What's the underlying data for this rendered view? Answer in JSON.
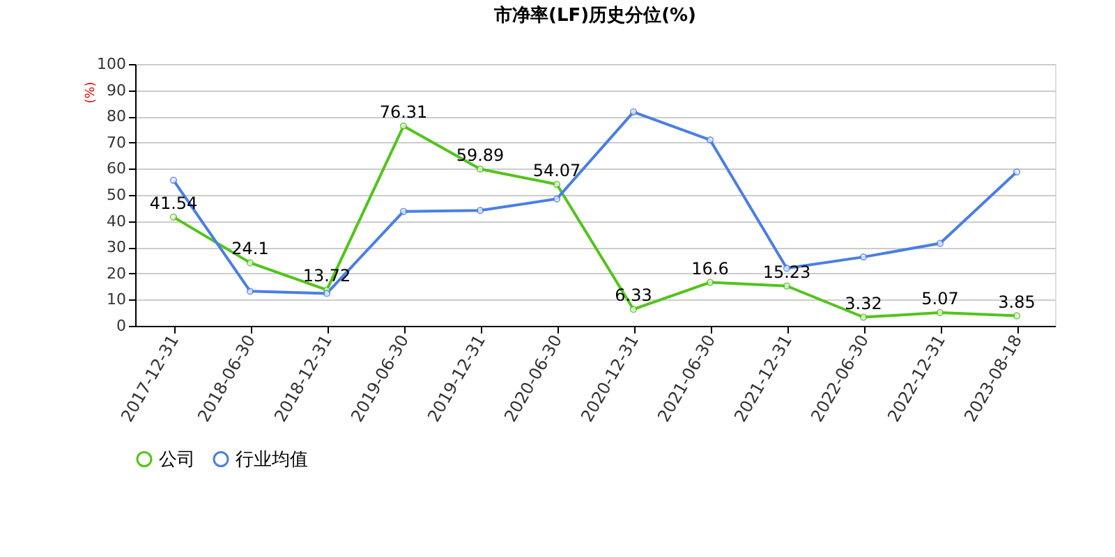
{
  "chart_data": {
    "type": "line",
    "title": "市净率(LF)历史分位(%)",
    "ylabel": "(%)",
    "categories": [
      "2017-12-31",
      "2018-06-30",
      "2018-12-31",
      "2019-06-30",
      "2019-12-31",
      "2020-06-30",
      "2020-12-31",
      "2021-06-30",
      "2021-12-31",
      "2022-06-30",
      "2022-12-31",
      "2023-08-18"
    ],
    "series": [
      {
        "name": "公司",
        "color": "#52c41a",
        "values": [
          41.54,
          24.1,
          13.72,
          76.31,
          59.89,
          54.07,
          6.33,
          16.6,
          15.23,
          3.32,
          5.07,
          3.85
        ],
        "value_labels": [
          "41.54",
          "24.1",
          "13.72",
          "76.31",
          "59.89",
          "54.07",
          "6.33",
          "16.6",
          "15.23",
          "3.32",
          "5.07",
          "3.85"
        ]
      },
      {
        "name": "行业均值",
        "color": "#4a7ee6",
        "values": [
          55.6,
          13.2,
          12.4,
          43.7,
          44.1,
          48.5,
          81.7,
          71.0,
          22.0,
          26.3,
          31.5,
          58.8
        ]
      }
    ],
    "ylim": [
      0,
      100
    ],
    "yticks": [
      0,
      10,
      20,
      30,
      40,
      50,
      60,
      70,
      80,
      90,
      100
    ],
    "grid": "y",
    "legend": "bottom",
    "marker": "circle",
    "line_style": "solid"
  }
}
